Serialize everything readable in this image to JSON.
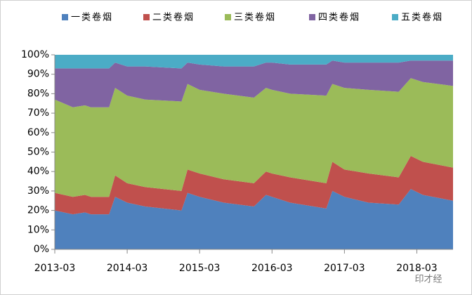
{
  "chart_data": {
    "type": "stacked_area",
    "x": [
      "2013-03",
      "2013-06",
      "2013-08",
      "2013-09",
      "2013-12",
      "2014-01",
      "2014-03",
      "2014-06",
      "2014-12",
      "2015-01",
      "2015-03",
      "2015-07",
      "2015-12",
      "2016-02",
      "2016-03",
      "2016-06",
      "2016-12",
      "2017-01",
      "2017-03",
      "2017-07",
      "2017-12",
      "2018-02",
      "2018-04",
      "2018-09"
    ],
    "xlim": [
      "2013-03",
      "2018-09"
    ],
    "xticks": [
      "2013-03",
      "2014-03",
      "2015-03",
      "2016-03",
      "2017-03",
      "2018-03"
    ],
    "ylim": [
      0,
      100
    ],
    "yticks": [
      {
        "value": 0,
        "label": "0%"
      },
      {
        "value": 10,
        "label": "10%"
      },
      {
        "value": 20,
        "label": "20%"
      },
      {
        "value": 30,
        "label": "30%"
      },
      {
        "value": 40,
        "label": "40%"
      },
      {
        "value": 50,
        "label": "50%"
      },
      {
        "value": 60,
        "label": "60%"
      },
      {
        "value": 70,
        "label": "70%"
      },
      {
        "value": 80,
        "label": "80%"
      },
      {
        "value": 90,
        "label": "90%"
      },
      {
        "value": 100,
        "label": "100%"
      }
    ],
    "legend": "top",
    "series": [
      {
        "name": "一类卷烟",
        "color": "#4f81bd",
        "values": [
          20,
          18,
          19,
          18,
          18,
          27,
          24,
          22,
          20,
          29,
          27,
          24,
          22,
          28,
          27,
          24,
          21,
          30,
          27,
          24,
          23,
          31,
          28,
          25
        ]
      },
      {
        "name": "二类卷烟",
        "color": "#c0504d",
        "values": [
          9,
          9,
          9,
          9,
          9,
          11,
          10,
          10,
          10,
          12,
          12,
          12,
          12,
          12,
          12,
          13,
          13,
          15,
          14,
          15,
          14,
          17,
          17,
          17
        ]
      },
      {
        "name": "三类卷烟",
        "color": "#9bbb59",
        "values": [
          48,
          46,
          46,
          46,
          46,
          45,
          45,
          45,
          46,
          44,
          43,
          44,
          44,
          43,
          43,
          43,
          45,
          40,
          42,
          43,
          44,
          40,
          41,
          42
        ]
      },
      {
        "name": "四类卷烟",
        "color": "#8064a2",
        "values": [
          16,
          20,
          19,
          20,
          20,
          13,
          15,
          17,
          17,
          11,
          13,
          14,
          16,
          13,
          14,
          15,
          16,
          12,
          13,
          14,
          15,
          9,
          11,
          13
        ]
      },
      {
        "name": "五类卷烟",
        "color": "#4bacc6",
        "values": [
          7,
          7,
          7,
          7,
          7,
          4,
          6,
          6,
          7,
          4,
          5,
          6,
          6,
          4,
          4,
          5,
          5,
          3,
          4,
          4,
          4,
          3,
          3,
          3
        ]
      }
    ]
  },
  "watermark": "印才经"
}
